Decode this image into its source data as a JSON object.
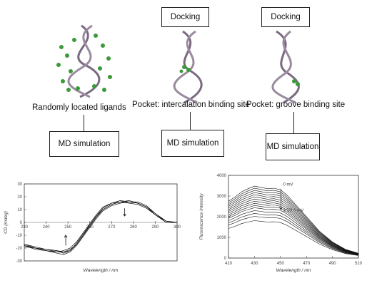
{
  "boxes": {
    "docking_1": "Docking",
    "docking_2": "Docking",
    "md_1": "MD simulation",
    "md_2": "MD simulation",
    "md_3": "MD simulation"
  },
  "labels": {
    "random": "Randomly located ligands",
    "intercalation": "Pocket: intercalation binding site",
    "groove": "Pocket: groove binding site"
  },
  "chart_data": [
    {
      "type": "line",
      "title": "",
      "xlabel": "Wavelength / nm",
      "ylabel": "CD (mdeg)",
      "xlim": [
        230,
        300
      ],
      "ylim": [
        -30,
        30
      ],
      "xticks": [
        "230",
        "240",
        "250",
        "260",
        "270",
        "280",
        "290",
        "300"
      ],
      "yticks": [
        "30",
        "20",
        "10",
        "0",
        "-10",
        "-20",
        "-30"
      ],
      "series": [
        {
          "x": [
            230,
            235,
            240,
            245,
            248,
            251,
            254,
            257,
            260,
            263,
            266,
            270,
            274,
            278,
            282,
            286,
            290,
            295,
            300
          ],
          "values": [
            -18,
            -20,
            -21,
            -23,
            -23,
            -21,
            -17,
            -10,
            -3,
            4,
            10,
            14,
            16,
            16,
            15,
            12,
            6,
            0,
            0
          ]
        },
        {
          "x": [
            230,
            235,
            240,
            245,
            248,
            251,
            254,
            257,
            260,
            263,
            266,
            270,
            274,
            278,
            282,
            286,
            290,
            295,
            300
          ],
          "values": [
            -17,
            -19,
            -21,
            -22,
            -24,
            -22,
            -16,
            -9,
            -2,
            5,
            11,
            15,
            16,
            15,
            14,
            11,
            6,
            1,
            0
          ]
        },
        {
          "x": [
            230,
            235,
            240,
            245,
            248,
            251,
            254,
            257,
            260,
            263,
            266,
            270,
            274,
            278,
            282,
            286,
            290,
            295,
            300
          ],
          "values": [
            -19,
            -20,
            -22,
            -24,
            -25,
            -23,
            -18,
            -11,
            -4,
            3,
            9,
            13,
            15,
            16,
            16,
            13,
            7,
            1,
            0
          ]
        },
        {
          "x": [
            230,
            235,
            240,
            245,
            248,
            251,
            254,
            257,
            260,
            263,
            266,
            270,
            274,
            278,
            282,
            286,
            290,
            295,
            300
          ],
          "values": [
            -18,
            -21,
            -22,
            -23,
            -22,
            -20,
            -15,
            -8,
            -1,
            6,
            12,
            15,
            17,
            16,
            15,
            12,
            6,
            0,
            0
          ]
        },
        {
          "x": [
            230,
            235,
            240,
            245,
            248,
            251,
            254,
            257,
            260,
            263,
            266,
            270,
            274,
            278,
            282,
            286,
            290,
            295,
            300
          ],
          "values": [
            -17,
            -20,
            -21,
            -22,
            -23,
            -22,
            -17,
            -10,
            -2,
            5,
            10,
            14,
            16,
            17,
            15,
            12,
            7,
            1,
            0
          ]
        }
      ]
    },
    {
      "type": "line",
      "title": "",
      "xlabel": "Wavelength / nm",
      "ylabel": "Fluorescence Intensity",
      "xlim": [
        410,
        510
      ],
      "ylim": [
        0,
        4000
      ],
      "xticks": [
        "410",
        "430",
        "450",
        "470",
        "490",
        "510"
      ],
      "yticks": [
        "4000",
        "3000",
        "2000",
        "1000",
        "0"
      ],
      "annotations": {
        "top": "0 mV",
        "bottom": "3*10⁻⁶ mV"
      },
      "series_scales": [
        1.0,
        0.97,
        0.94,
        0.91,
        0.88,
        0.85,
        0.82,
        0.79,
        0.76,
        0.73,
        0.7,
        0.66,
        0.62,
        0.58,
        0.52
      ],
      "base_x": [
        410,
        415,
        420,
        425,
        430,
        435,
        440,
        445,
        450,
        455,
        460,
        470,
        480,
        490,
        500,
        510
      ],
      "base_values": [
        2750,
        2950,
        3200,
        3350,
        3480,
        3420,
        3350,
        3380,
        3300,
        3050,
        2700,
        2000,
        1300,
        780,
        420,
        230
      ]
    }
  ]
}
